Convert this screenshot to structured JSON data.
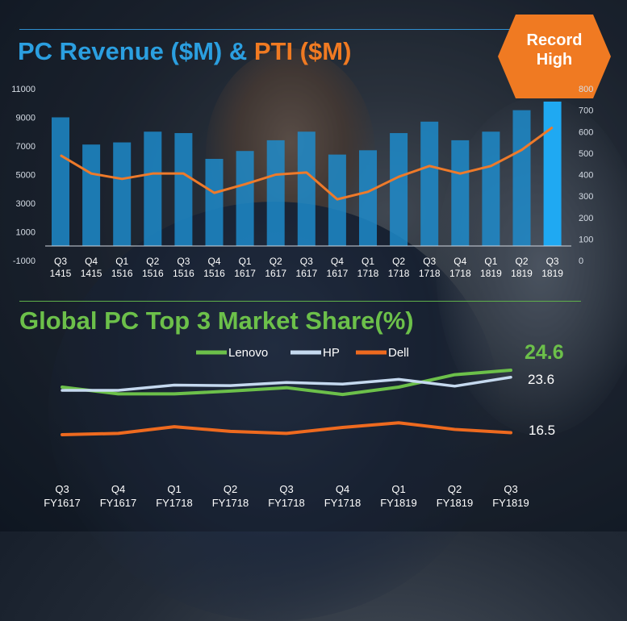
{
  "revenue_title": {
    "part1": "PC Revenue ($M) & ",
    "part2": "PTI  ($M)"
  },
  "badge": {
    "line1": "Record",
    "line2": "High"
  },
  "share_title": "Global PC Top 3 Market Share(%)",
  "colors": {
    "revenue_bar": "#1d8ecf",
    "revenue_bar_highlight": "#1fa9f2",
    "pti_line": "#ee7a2a",
    "lenovo": "#6cc04a",
    "hp": "#c5d9ef",
    "dell": "#ee6a1f",
    "title_blue": "#2b9fe0",
    "title_orange": "#f07a22"
  },
  "chart_data": [
    {
      "type": "bar",
      "title": "PC Revenue ($M) & PTI ($M)",
      "categories": [
        [
          "Q3",
          "1415"
        ],
        [
          "Q4",
          "1415"
        ],
        [
          "Q1",
          "1516"
        ],
        [
          "Q2",
          "1516"
        ],
        [
          "Q3",
          "1516"
        ],
        [
          "Q4",
          "1516"
        ],
        [
          "Q1",
          "1617"
        ],
        [
          "Q2",
          "1617"
        ],
        [
          "Q3",
          "1617"
        ],
        [
          "Q4",
          "1617"
        ],
        [
          "Q1",
          "1718"
        ],
        [
          "Q2",
          "1718"
        ],
        [
          "Q3",
          "1718"
        ],
        [
          "Q4",
          "1718"
        ],
        [
          "Q1",
          "1819"
        ],
        [
          "Q2",
          "1819"
        ],
        [
          "Q3",
          "1819"
        ]
      ],
      "series": [
        {
          "name": "PC Revenue ($M)",
          "axis": "left",
          "type": "bar",
          "values": [
            9000,
            7100,
            7250,
            8000,
            7900,
            6100,
            6650,
            7400,
            8000,
            6400,
            6700,
            7900,
            8700,
            7400,
            8000,
            9500,
            10100
          ]
        },
        {
          "name": "PTI ($M)",
          "axis": "right",
          "type": "line",
          "values": [
            490,
            405,
            380,
            405,
            405,
            315,
            355,
            400,
            410,
            285,
            320,
            390,
            440,
            405,
            440,
            515,
            620
          ]
        }
      ],
      "highlight_index": 16,
      "y_left": {
        "min": -1000,
        "max": 11000,
        "ticks": [
          "11000",
          "9000",
          "7000",
          "5000",
          "3000",
          "1000",
          "-1000"
        ],
        "tick_values": [
          11000,
          9000,
          7000,
          5000,
          3000,
          1000,
          -1000
        ]
      },
      "y_right": {
        "min": 0,
        "max": 800,
        "ticks": [
          "800",
          "700",
          "600",
          "500",
          "400",
          "300",
          "200",
          "100",
          "0"
        ],
        "tick_values": [
          800,
          700,
          600,
          500,
          400,
          300,
          200,
          100,
          0
        ]
      }
    },
    {
      "type": "line",
      "title": "Global PC Top 3 Market Share(%)",
      "categories": [
        [
          "Q3",
          "FY1617"
        ],
        [
          "Q4",
          "FY1617"
        ],
        [
          "Q1",
          "FY1718"
        ],
        [
          "Q2",
          "FY1718"
        ],
        [
          "Q3",
          "FY1718"
        ],
        [
          "Q4",
          "FY1718"
        ],
        [
          "Q1",
          "FY1819"
        ],
        [
          "Q2",
          "FY1819"
        ],
        [
          "Q3",
          "FY1819"
        ]
      ],
      "series": [
        {
          "name": "Lenovo",
          "values": [
            21.6,
            20.4,
            20.4,
            20.9,
            21.5,
            20.3,
            21.6,
            23.8,
            24.6
          ],
          "end_label": "24.6"
        },
        {
          "name": "HP",
          "values": [
            21.1,
            21.1,
            22.1,
            22.0,
            22.6,
            22.3,
            23.2,
            21.9,
            23.6
          ],
          "end_label": "23.6"
        },
        {
          "name": "Dell",
          "values": [
            16.2,
            16.4,
            17.4,
            16.7,
            16.4,
            17.3,
            18.0,
            17.0,
            16.5
          ],
          "end_label": "16.5"
        }
      ],
      "legend": [
        "Lenovo",
        "HP",
        "Dell"
      ]
    }
  ]
}
